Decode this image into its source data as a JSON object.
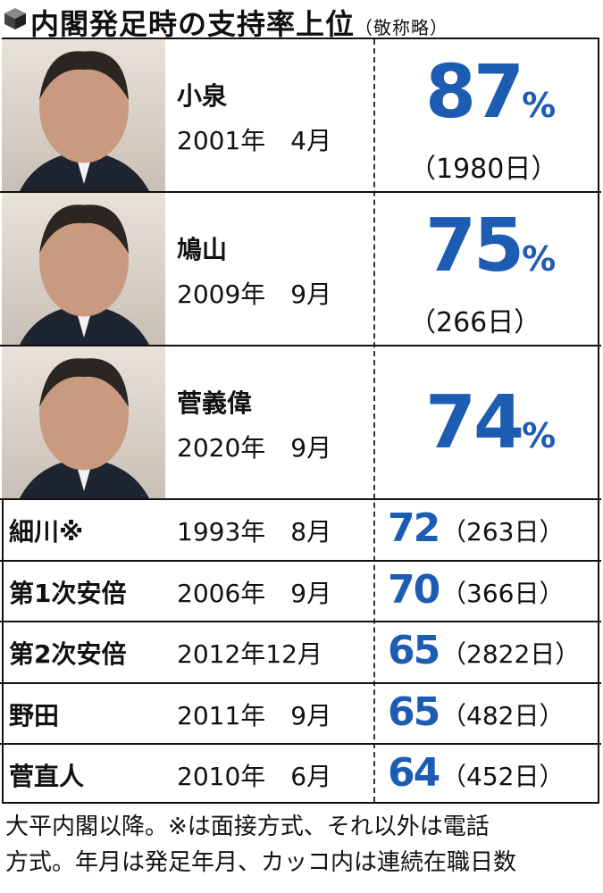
{
  "title": "内閣発足時の支持率上位",
  "title_note": "（敬称略）",
  "featured": [
    {
      "name": "小泉",
      "date": "2001年　4月",
      "rate": 87,
      "unit": "%",
      "days": "（1980日）"
    },
    {
      "name": "鳩山",
      "date": "2009年　9月",
      "rate": 75,
      "unit": "%",
      "days": "（266日）"
    },
    {
      "name": "菅義偉",
      "date": "2020年　9月",
      "rate": 74,
      "unit": "%"
    }
  ],
  "rows": [
    {
      "name": "細川※",
      "date": "1993年　8月",
      "rate": 72,
      "days": "（263日）"
    },
    {
      "name": "第1次安倍",
      "date": "2006年　9月",
      "rate": 70,
      "days": "（366日）"
    },
    {
      "name": "第2次安倍",
      "date": "2012年12月",
      "rate": 65,
      "days": "（2822日）"
    },
    {
      "name": "野田",
      "date": "2011年　9月",
      "rate": 65,
      "days": "（482日）"
    },
    {
      "name": "菅直人",
      "date": "2010年　6月",
      "rate": 64,
      "days": "（452日）"
    }
  ],
  "footnote": [
    "大平内閣以降。※は面接方式、それ以外は電話",
    "方式。年月は発足年月、カッコ内は連続在職日数"
  ]
}
